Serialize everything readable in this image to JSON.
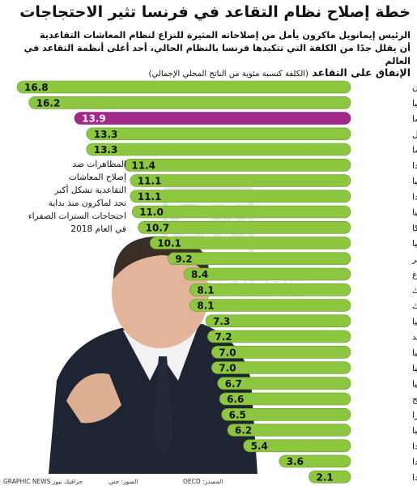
{
  "header": {
    "title": "خطة إصلاح نظام التقاعد في فرنسا تثير الاحتجاجات",
    "subtitle_lines": [
      "الرئيس إيمانويل ماكرون يأمل من إصلاحاته المثيرة للنزاع لنظام المعاشات التقاعدية",
      "أن يقلل جدًا من الكلفة التي تتكبدها فرنسا بالنظام الحالي، أحد أغلى أنظمة التقاعد في العالم"
    ],
    "chart_heading": "الإنفاق على التقاعد",
    "chart_heading_note": "(الكلفة كنسبة مئوية من الناتج المحلي الإجمالي)"
  },
  "callout_lines": [
    "المظاهرات ضد",
    "إصلاح المعاشات",
    "التقاعدية تشكل أكبر",
    "تحد لماكرون منذ بداية",
    "احتجاجات السترات الصفراء",
    "في العام 2018"
  ],
  "footer": {
    "source": "المصدر: OECD",
    "photo": "الصور: جتي",
    "credit": "GRAPHIC NEWS جرافيك نيوز"
  },
  "watermark": {
    "logo_text": "GN",
    "brand_text": "GRAPHIC NEWS"
  },
  "colors": {
    "bar": "#8dc63f",
    "bar_highlight": "#a3288a",
    "bar_stroke": "#5e9a2a"
  },
  "chart_data": {
    "type": "bar",
    "orientation": "horizontal",
    "categories": [
      "اليونان",
      "إيطاليا",
      "فرنسا",
      "البرتغال",
      "النمسا",
      "فنلندا",
      "سلوفينيا",
      "بولندا",
      "إسبانيا",
      "بلجيكا",
      "ألمانيا",
      "المجر",
      "لوكسمبورغ",
      "الدنمارك",
      "جمهورية التشيك",
      "سلوفاكيا",
      "السويد",
      "لاتفيا",
      "إستونيا",
      "ليتوانيا",
      "النرويج",
      "سويسرا",
      "بريطانيا",
      "هولندا",
      "إيرلندا",
      "أيسلندا"
    ],
    "values": [
      16.8,
      16.2,
      13.9,
      13.3,
      13.3,
      11.4,
      11.1,
      11.1,
      11.0,
      10.7,
      10.1,
      9.2,
      8.4,
      8.1,
      8.1,
      7.3,
      7.2,
      7.0,
      7.0,
      6.7,
      6.6,
      6.5,
      6.2,
      5.4,
      3.6,
      2.1
    ],
    "value_labels": [
      "16.8",
      "16.2",
      "13.9",
      "13.3",
      "13.3",
      "11.4",
      "11.1",
      "11.1",
      "11.0",
      "10.7",
      "10.1",
      "9.2",
      "8.4",
      "8.1",
      "8.1",
      "7.3",
      "7.2",
      "7.0",
      "7.0",
      "6.7",
      "6.6",
      "6.5",
      "6.2",
      "5.4",
      "3.6",
      "2.1"
    ],
    "highlight": "فرنسا",
    "xlim": [
      0,
      16.8
    ],
    "grid": false
  }
}
